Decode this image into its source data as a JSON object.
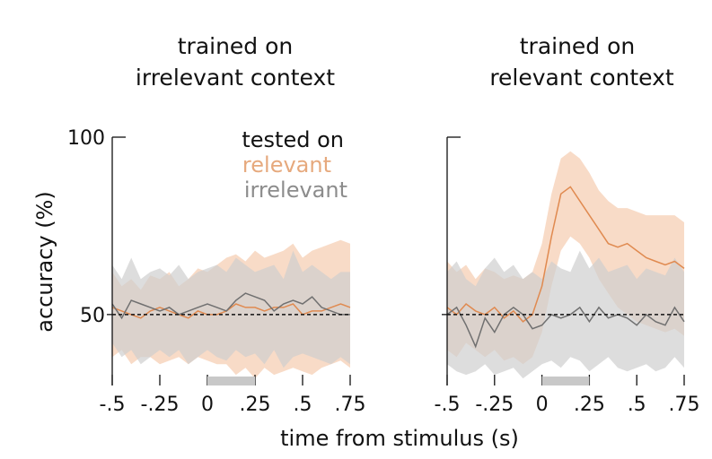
{
  "chart_data": [
    {
      "type": "line",
      "title_lines": [
        "trained on",
        "irrelevant context"
      ],
      "ylabel": "accuracy (%)",
      "ylim": [
        30,
        100
      ],
      "xlim": [
        -0.5,
        0.75
      ],
      "x_ticks": [
        -0.5,
        -0.25,
        0,
        0.25,
        0.5,
        0.75
      ],
      "x_tick_labels": [
        "-.5",
        "-.25",
        "0",
        ".25",
        ".5",
        ".75"
      ],
      "y_ticks": [
        50,
        100
      ],
      "y_tick_labels": [
        "50",
        "100"
      ],
      "chance_level": 50,
      "stimulus_window": [
        0,
        0.25
      ],
      "legend": {
        "title": "tested on",
        "placement": "top-right",
        "entries": [
          {
            "label": "relevant",
            "color": "#e6a97d"
          },
          {
            "label": "irrelevant",
            "color": "#8c8c8c"
          }
        ]
      },
      "x": [
        -0.5,
        -0.45,
        -0.4,
        -0.35,
        -0.3,
        -0.25,
        -0.2,
        -0.15,
        -0.1,
        -0.05,
        0,
        0.05,
        0.1,
        0.15,
        0.2,
        0.25,
        0.3,
        0.35,
        0.4,
        0.45,
        0.5,
        0.55,
        0.6,
        0.65,
        0.7,
        0.75
      ],
      "series": [
        {
          "name": "relevant",
          "color": "#e08a50",
          "band_color": "#f5cfb4",
          "mean": [
            52,
            51,
            50,
            49,
            51,
            52,
            51,
            50,
            49,
            51,
            50,
            50,
            51,
            53,
            52,
            52,
            51,
            52,
            52,
            53,
            50,
            51,
            51,
            52,
            53,
            52
          ],
          "lower": [
            38,
            40,
            36,
            38,
            38,
            36,
            37,
            38,
            36,
            38,
            37,
            36,
            36,
            33,
            35,
            32,
            35,
            33,
            34,
            35,
            34,
            33,
            35,
            36,
            37,
            35
          ],
          "upper": [
            62,
            58,
            60,
            57,
            61,
            60,
            62,
            58,
            60,
            63,
            62,
            64,
            66,
            67,
            65,
            68,
            66,
            67,
            68,
            70,
            66,
            68,
            69,
            70,
            71,
            70
          ]
        },
        {
          "name": "irrelevant",
          "color": "#707070",
          "band_color": "#cfcfcf",
          "mean": [
            53,
            49,
            54,
            53,
            52,
            51,
            52,
            50,
            51,
            52,
            53,
            52,
            51,
            54,
            56,
            55,
            54,
            51,
            53,
            54,
            53,
            55,
            52,
            51,
            50,
            50
          ],
          "lower": [
            42,
            38,
            40,
            36,
            38,
            40,
            38,
            40,
            36,
            38,
            40,
            38,
            37,
            40,
            38,
            39,
            36,
            40,
            35,
            38,
            39,
            38,
            37,
            36,
            38,
            36
          ],
          "upper": [
            64,
            60,
            66,
            60,
            62,
            63,
            61,
            64,
            60,
            62,
            63,
            64,
            62,
            66,
            64,
            62,
            63,
            64,
            60,
            68,
            62,
            64,
            62,
            60,
            62,
            62
          ]
        }
      ]
    },
    {
      "type": "line",
      "title_lines": [
        "trained on",
        "relevant context"
      ],
      "ylim": [
        30,
        100
      ],
      "xlim": [
        -0.5,
        0.75
      ],
      "x_ticks": [
        -0.5,
        -0.25,
        0,
        0.25,
        0.5,
        0.75
      ],
      "x_tick_labels": [
        "-.5",
        "-.25",
        "0",
        ".25",
        ".5",
        ".75"
      ],
      "chance_level": 50,
      "stimulus_window": [
        0,
        0.25
      ],
      "x": [
        -0.5,
        -0.45,
        -0.4,
        -0.35,
        -0.3,
        -0.25,
        -0.2,
        -0.15,
        -0.1,
        -0.05,
        0,
        0.05,
        0.1,
        0.15,
        0.2,
        0.25,
        0.3,
        0.35,
        0.4,
        0.45,
        0.5,
        0.55,
        0.6,
        0.65,
        0.7,
        0.75
      ],
      "series": [
        {
          "name": "relevant",
          "color": "#e08a50",
          "band_color": "#f5cfb4",
          "mean": [
            52,
            50,
            53,
            51,
            50,
            52,
            49,
            51,
            48,
            50,
            58,
            72,
            84,
            86,
            82,
            78,
            74,
            70,
            69,
            70,
            68,
            66,
            65,
            64,
            65,
            63
          ],
          "lower": [
            40,
            38,
            42,
            40,
            38,
            40,
            37,
            38,
            36,
            38,
            45,
            58,
            68,
            72,
            70,
            66,
            60,
            56,
            52,
            50,
            48,
            47,
            46,
            45,
            46,
            44
          ],
          "upper": [
            65,
            62,
            64,
            60,
            63,
            62,
            60,
            61,
            60,
            62,
            70,
            84,
            94,
            96,
            94,
            90,
            85,
            82,
            80,
            80,
            79,
            78,
            78,
            78,
            78,
            76
          ]
        },
        {
          "name": "irrelevant",
          "color": "#707070",
          "band_color": "#cfcfcf",
          "mean": [
            50,
            52,
            47,
            41,
            49,
            45,
            50,
            52,
            50,
            46,
            47,
            50,
            49,
            50,
            52,
            48,
            52,
            49,
            50,
            49,
            47,
            50,
            48,
            47,
            52,
            48
          ],
          "lower": [
            36,
            34,
            33,
            34,
            36,
            33,
            34,
            35,
            32,
            34,
            36,
            37,
            35,
            38,
            37,
            34,
            36,
            38,
            35,
            34,
            35,
            36,
            34,
            35,
            38,
            35
          ],
          "upper": [
            62,
            65,
            60,
            58,
            63,
            66,
            62,
            64,
            60,
            62,
            60,
            65,
            63,
            62,
            68,
            63,
            66,
            62,
            63,
            64,
            60,
            63,
            62,
            61,
            66,
            62
          ]
        }
      ]
    }
  ],
  "shared_xlabel": "time from stimulus (s)"
}
